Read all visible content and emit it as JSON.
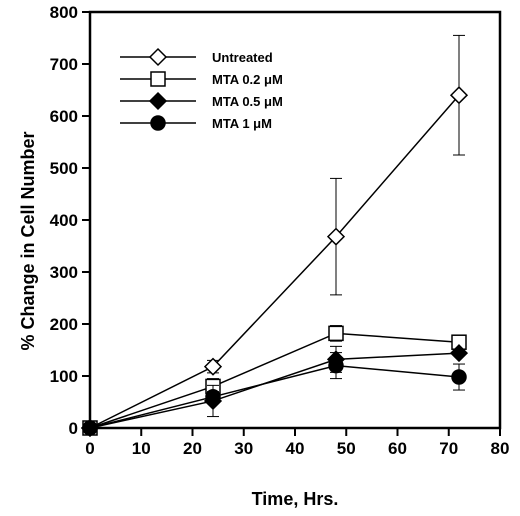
{
  "chart_data": {
    "type": "line",
    "title": "",
    "xlabel": "Time, Hrs.",
    "ylabel": "% Change in Cell Number",
    "xlim": [
      0,
      80
    ],
    "ylim": [
      0,
      800
    ],
    "xticks": [
      0,
      10,
      20,
      30,
      40,
      50,
      60,
      70,
      80
    ],
    "yticks": [
      0,
      100,
      200,
      300,
      400,
      500,
      600,
      700,
      800
    ],
    "grid": false,
    "legend_position": "top-left",
    "series": [
      {
        "name": "Untreated",
        "marker": "diamond-open",
        "x": [
          0,
          24,
          48,
          72
        ],
        "y": [
          0,
          118,
          368,
          640
        ],
        "err": [
          0,
          12,
          112,
          115
        ]
      },
      {
        "name": "MTA 0.2 μM",
        "marker": "square-open",
        "x": [
          0,
          24,
          48,
          72
        ],
        "y": [
          0,
          80,
          182,
          165
        ],
        "err": [
          0,
          15,
          15,
          0
        ]
      },
      {
        "name": "MTA 0.5 μM",
        "marker": "diamond-filled",
        "x": [
          0,
          24,
          48,
          72
        ],
        "y": [
          0,
          52,
          132,
          144
        ],
        "err": [
          0,
          30,
          25,
          0
        ]
      },
      {
        "name": "MTA 1 μM",
        "marker": "circle-filled",
        "x": [
          0,
          24,
          48,
          72
        ],
        "y": [
          0,
          60,
          120,
          98
        ],
        "err": [
          0,
          10,
          25,
          25
        ]
      }
    ],
    "colors": {
      "line": "#000000",
      "background": "#ffffff"
    }
  }
}
